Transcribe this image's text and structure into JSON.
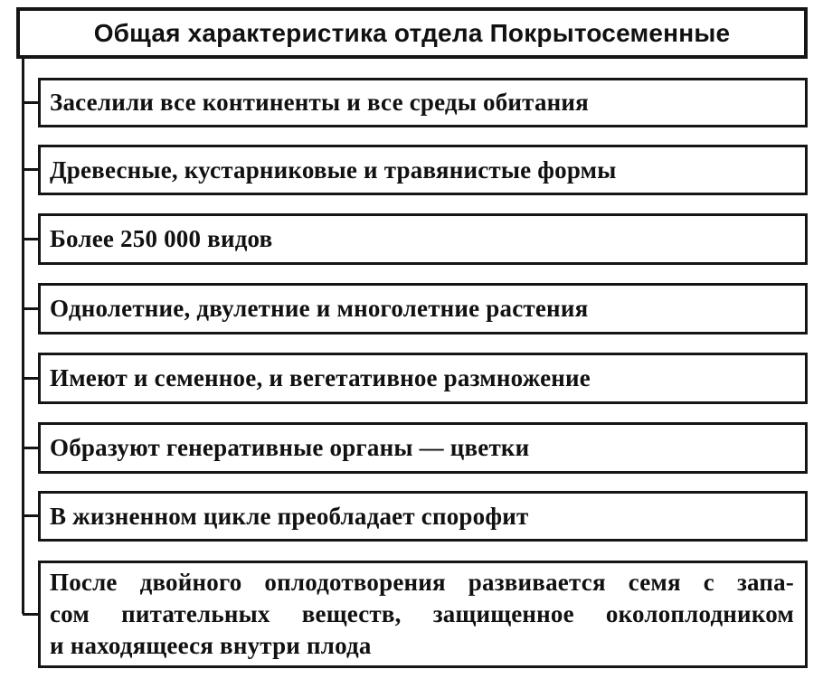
{
  "diagram": {
    "title": "Общая характеристика отдела Покрытосеменные",
    "items": [
      {
        "text": "Заселили все континенты и все среды обитания"
      },
      {
        "text": "Древесные, кустарниковые и травянистые формы"
      },
      {
        "text": "Более 250 000 видов"
      },
      {
        "text": "Однолетние, двулетние и многолетние растения"
      },
      {
        "text": "Имеют и семенное, и вегетативное размножение"
      },
      {
        "text": "Образуют генеративные органы — цветки"
      },
      {
        "text": "В жизненном цикле преобладает спорофит"
      },
      {
        "lines": [
          "После двойного оплодотворения развивается семя с запа-",
          "сом питательных веществ, защищенное околоплодником",
          "и находящееся внутри плода"
        ]
      }
    ],
    "colors": {
      "ink": "#151515",
      "background": "#ffffff"
    }
  }
}
